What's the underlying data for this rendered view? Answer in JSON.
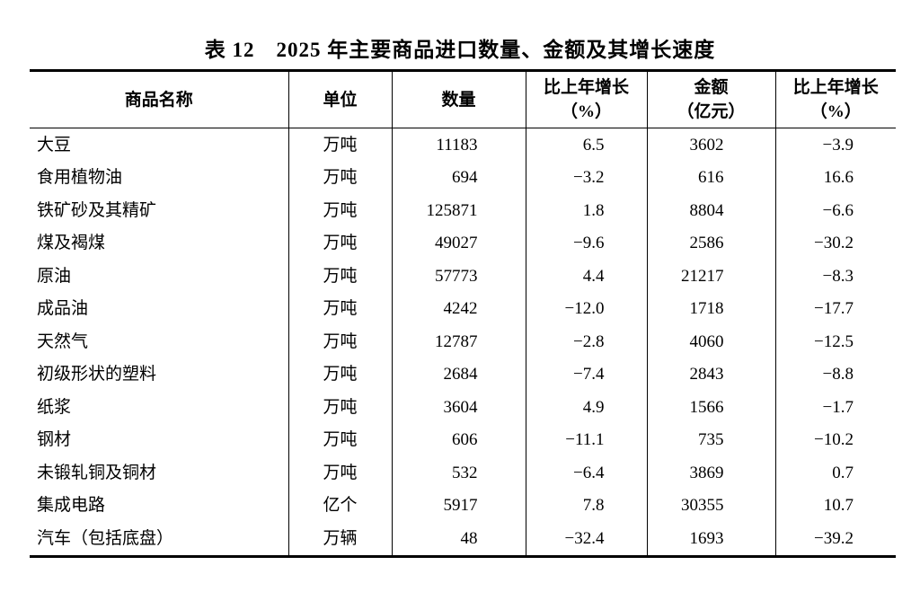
{
  "title": "表 12　2025 年主要商品进口数量、金额及其增长速度",
  "table": {
    "columns": [
      {
        "label": "商品名称",
        "sub": ""
      },
      {
        "label": "单位",
        "sub": ""
      },
      {
        "label": "数量",
        "sub": ""
      },
      {
        "label": "比上年增长",
        "sub": "（%）"
      },
      {
        "label": "金额",
        "sub": "（亿元）"
      },
      {
        "label": "比上年增长",
        "sub": "（%）"
      }
    ],
    "rows": [
      [
        "大豆",
        "万吨",
        "11183",
        "6.5",
        "3602",
        "−3.9"
      ],
      [
        "食用植物油",
        "万吨",
        "694",
        "−3.2",
        "616",
        "16.6"
      ],
      [
        "铁矿砂及其精矿",
        "万吨",
        "125871",
        "1.8",
        "8804",
        "−6.6"
      ],
      [
        "煤及褐煤",
        "万吨",
        "49027",
        "−9.6",
        "2586",
        "−30.2"
      ],
      [
        "原油",
        "万吨",
        "57773",
        "4.4",
        "21217",
        "−8.3"
      ],
      [
        "成品油",
        "万吨",
        "4242",
        "−12.0",
        "1718",
        "−17.7"
      ],
      [
        "天然气",
        "万吨",
        "12787",
        "−2.8",
        "4060",
        "−12.5"
      ],
      [
        "初级形状的塑料",
        "万吨",
        "2684",
        "−7.4",
        "2843",
        "−8.8"
      ],
      [
        "纸浆",
        "万吨",
        "3604",
        "4.9",
        "1566",
        "−1.7"
      ],
      [
        "钢材",
        "万吨",
        "606",
        "−11.1",
        "735",
        "−10.2"
      ],
      [
        "未锻轧铜及铜材",
        "万吨",
        "532",
        "−6.4",
        "3869",
        "0.7"
      ],
      [
        "集成电路",
        "亿个",
        "5917",
        "7.8",
        "30355",
        "10.7"
      ],
      [
        "汽车（包括底盘）",
        "万辆",
        "48",
        "−32.4",
        "1693",
        "−39.2"
      ]
    ]
  },
  "colors": {
    "text": "#000000",
    "border": "#000000",
    "background": "#ffffff"
  }
}
